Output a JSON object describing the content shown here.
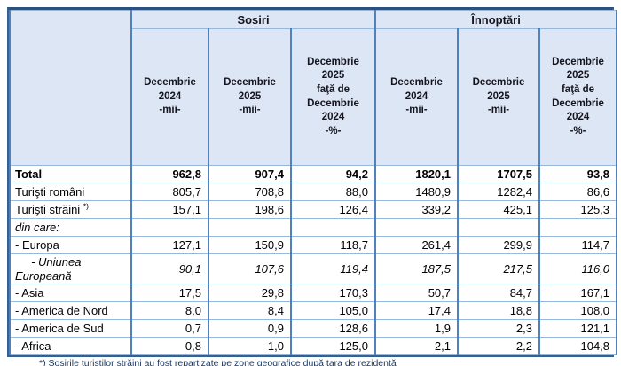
{
  "table": {
    "corner_label": "",
    "group_headers": [
      {
        "label": "Sosiri"
      },
      {
        "label": "Înnoptări"
      }
    ],
    "col_headers": [
      "Decembrie\n2024\n-mii-",
      "Decembrie\n2025\n-mii-",
      "Decembrie\n2025\nfaţă de\nDecembrie\n2024\n-%-",
      "Decembrie\n2024\n-mii-",
      "Decembrie\n2025\n-mii-",
      "Decembrie\n2025\nfaţă de\nDecembrie\n2024\n-%-"
    ],
    "rows": [
      {
        "label": "Total",
        "style": "bold",
        "values": [
          "962,8",
          "907,4",
          "94,2",
          "1820,1",
          "1707,5",
          "93,8"
        ]
      },
      {
        "label": "Turişti români",
        "style": "",
        "values": [
          "805,7",
          "708,8",
          "88,0",
          "1480,9",
          "1282,4",
          "86,6"
        ]
      },
      {
        "label": "Turişti străini ",
        "sup": "*)",
        "style": "",
        "values": [
          "157,1",
          "198,6",
          "126,4",
          "339,2",
          "425,1",
          "125,3"
        ]
      },
      {
        "label": "din care:",
        "style": "italic",
        "values": [
          "",
          "",
          "",
          "",
          "",
          ""
        ]
      },
      {
        "label": "- Europa",
        "style": "",
        "values": [
          "127,1",
          "150,9",
          "118,7",
          "261,4",
          "299,9",
          "114,7"
        ]
      },
      {
        "label": "     - Uniunea\nEuropeană",
        "style": "italic",
        "values": [
          "90,1",
          "107,6",
          "119,4",
          "187,5",
          "217,5",
          "116,0"
        ]
      },
      {
        "label": "- Asia",
        "style": "",
        "values": [
          "17,5",
          "29,8",
          "170,3",
          "50,7",
          "84,7",
          "167,1"
        ]
      },
      {
        "label": "- America de Nord",
        "style": "",
        "values": [
          "8,0",
          "8,4",
          "105,0",
          "17,4",
          "18,8",
          "108,0"
        ]
      },
      {
        "label": "- America de Sud",
        "style": "",
        "values": [
          "0,7",
          "0,9",
          "128,6",
          "1,9",
          "2,3",
          "121,1"
        ]
      },
      {
        "label": "- Africa",
        "style": "",
        "values": [
          "0,8",
          "1,0",
          "125,0",
          "2,1",
          "2,2",
          "104,8"
        ]
      }
    ],
    "footnote": "*) Sosirile turiştilor străini au fost repartizate pe zone geografice după ţara de rezidenţă"
  },
  "colors": {
    "header_bg": "#dce6f4",
    "grid_vertical": "#4f81bd",
    "grid_horizontal": "#95b8dc",
    "outer_border": "#376092",
    "footnote_text": "#17365d"
  }
}
